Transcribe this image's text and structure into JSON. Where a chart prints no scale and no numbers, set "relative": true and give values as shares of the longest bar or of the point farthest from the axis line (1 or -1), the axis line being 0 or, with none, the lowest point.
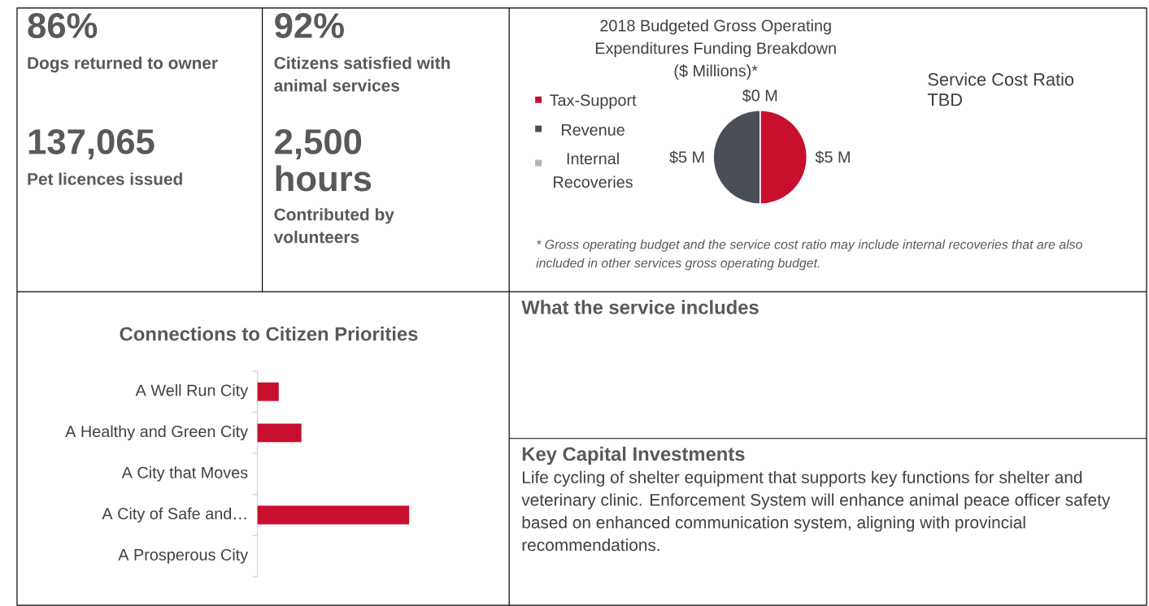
{
  "chart_data": [
    {
      "type": "other",
      "annotations": [
        "86%",
        "Dogs returned to owner",
        "137,065",
        "Pet licences issued",
        "92%",
        "Citizens satisfied with animal services",
        "2,500 hours",
        "Contributed by volunteers"
      ]
    },
    {
      "type": "pie",
      "title": "2018 Budgeted Gross Operating Expenditures Funding Breakdown ($ Millions)*",
      "categories": [
        "Tax-Support",
        "Revenue",
        "Internal Recoveries"
      ],
      "values": [
        5,
        5,
        0
      ],
      "colors": [
        "#c8102e",
        "#4a4e56",
        "#b3b3b3"
      ],
      "value_labels": [
        "$5 M",
        "$5 M",
        "$0 M"
      ],
      "legend": "left",
      "annotations": [
        "* Gross operating budget and the service cost ratio may include internal recoveries that are also included in other services gross operating budget."
      ]
    },
    {
      "type": "other",
      "annotations": [
        "Service Cost Ratio",
        "TBD"
      ]
    },
    {
      "type": "bar",
      "orientation": "horizontal",
      "relative": true,
      "title": "Connections to Citizen Priorities",
      "categories": [
        "A Well Run City",
        "A Healthy and Green City",
        "A City that Moves",
        "A City of Safe and…",
        "A Prosperous City"
      ],
      "values": [
        0.14,
        0.29,
        0,
        1,
        0
      ],
      "color": "#c8102e"
    },
    {
      "type": "other",
      "title": "What the service includes"
    },
    {
      "type": "other",
      "title": "Key Capital Investments",
      "annotations": [
        "Life cycling of shelter equipment that supports key functions for shelter and veterinary clinic. Enforcement System will enhance animal peace officer safety based on enhanced communication system, aligning with provincial recommendations."
      ]
    }
  ]
}
